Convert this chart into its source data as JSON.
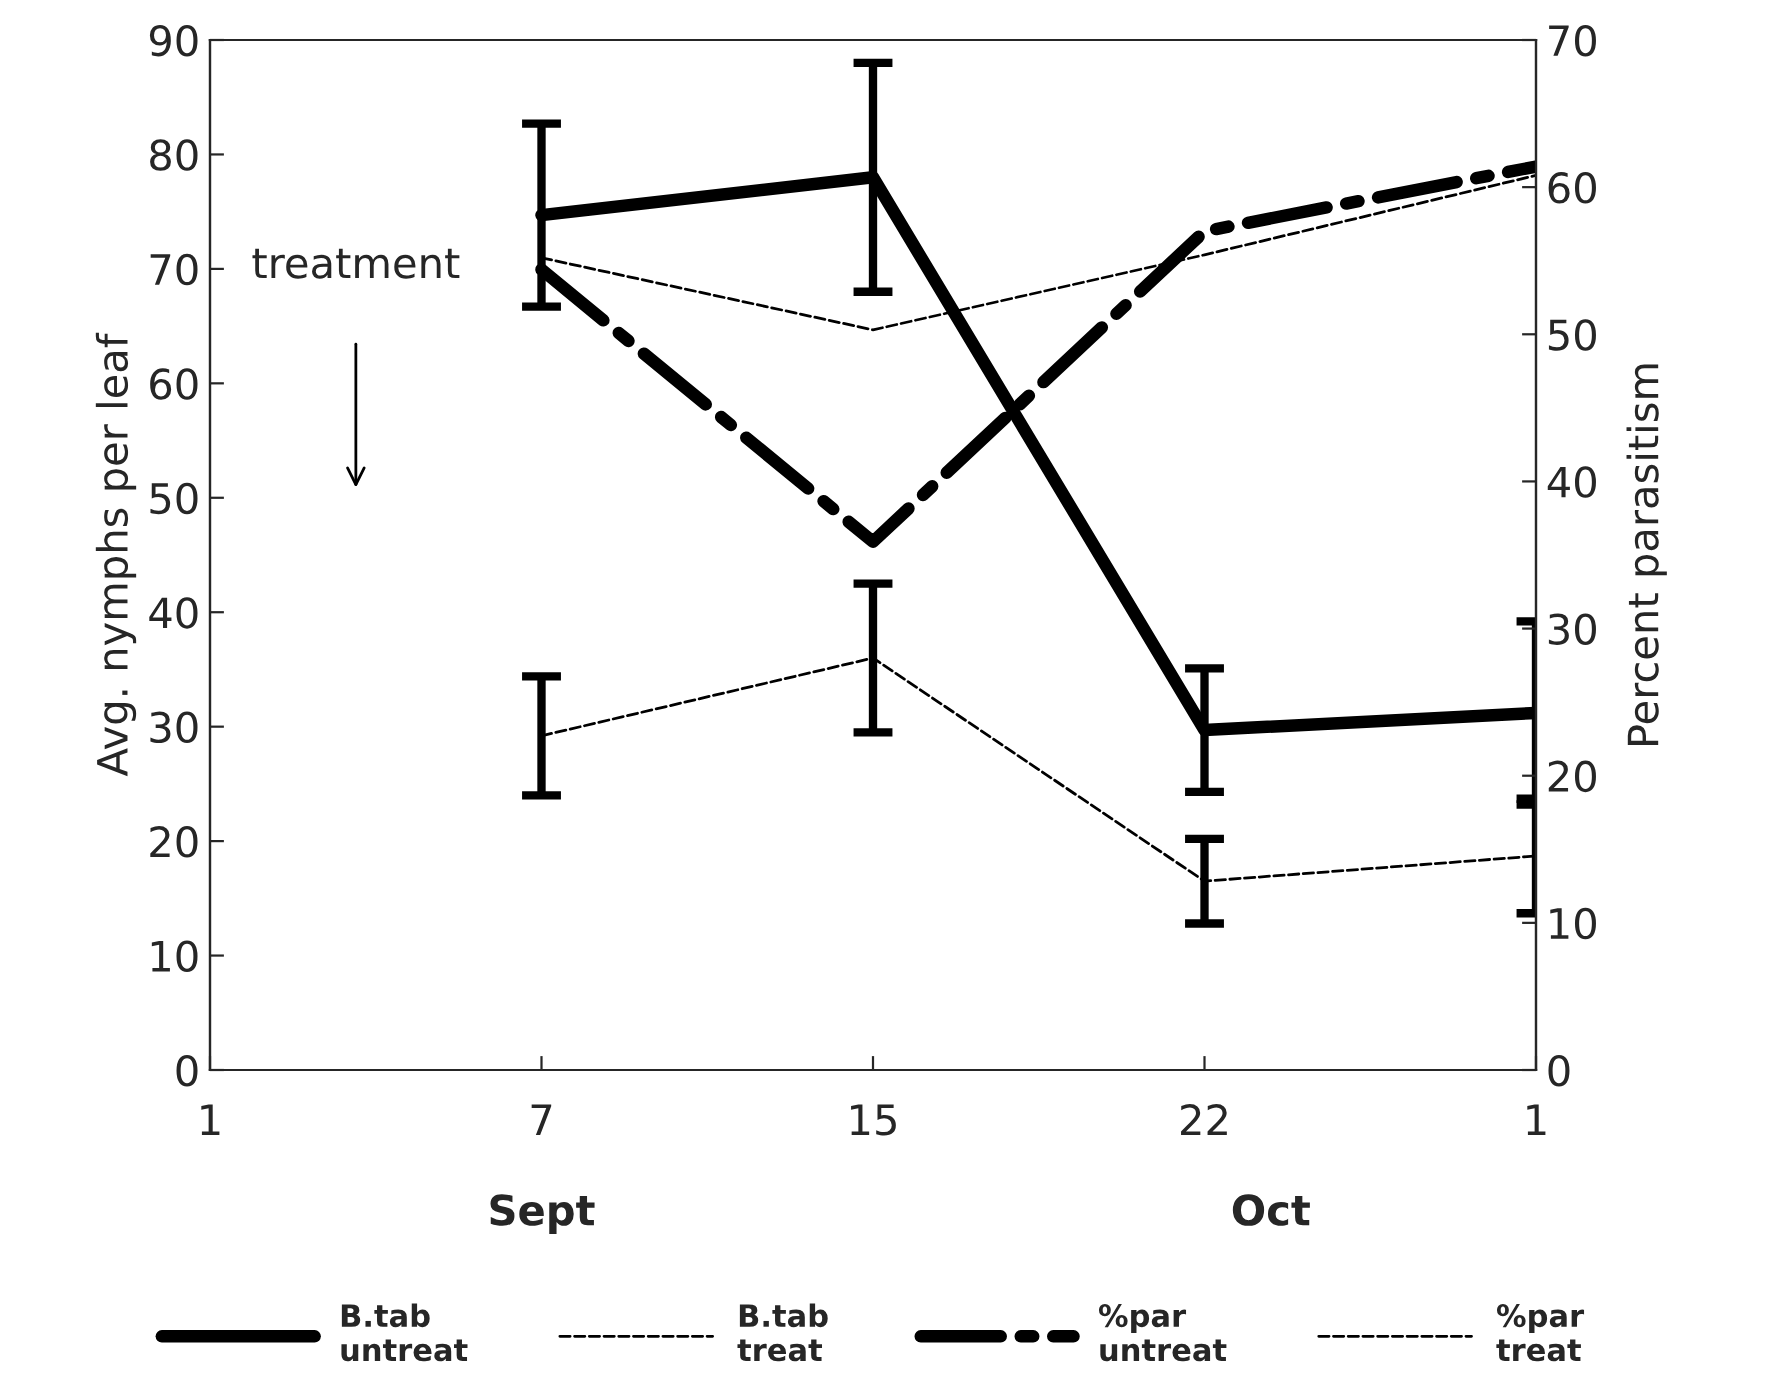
{
  "chart_data": {
    "type": "line",
    "ylabel": "Avg. nymphs per leaf",
    "y2label": "Percent parasitism",
    "categories": [
      "1",
      "7",
      "15",
      "22",
      "1"
    ],
    "series": [
      {
        "name": "B.tab\nuntreat",
        "color": "#000000",
        "line_style": "solid",
        "values": [
          null,
          74.7,
          78,
          29.7,
          31.2
        ],
        "errors": [
          null,
          8,
          10,
          5.4,
          8
        ]
      },
      {
        "name": "B.tab\ntreat",
        "color": "#000000",
        "line_style": "dashed",
        "values": [
          null,
          29.2,
          36,
          16.5,
          18.7
        ],
        "errors": [
          null,
          5.2,
          6.5,
          3.7,
          5
        ]
      },
      {
        "name": "%par\nuntreat",
        "color": "#000000",
        "line_style": "dashdot",
        "axis": "y2",
        "values": [
          null,
          54.4,
          35.9,
          57,
          61.4
        ]
      },
      {
        "name": "%par\ntreat",
        "color": "#000000",
        "line_style": "dashed",
        "axis": "y2",
        "values": [
          null,
          55.2,
          50.3,
          55.4,
          60.8
        ]
      }
    ],
    "ylim": [
      0,
      90
    ],
    "yticks": [
      0,
      10,
      20,
      30,
      40,
      50,
      60,
      70,
      80,
      90
    ],
    "y2lim": [
      0,
      70
    ],
    "y2ticks": [
      0,
      10,
      20,
      30,
      40,
      50,
      60,
      70
    ],
    "annotations": [
      "treatment",
      "Sept",
      "Oct"
    ],
    "grid": false,
    "legend": "bottom",
    "marker": "none"
  }
}
